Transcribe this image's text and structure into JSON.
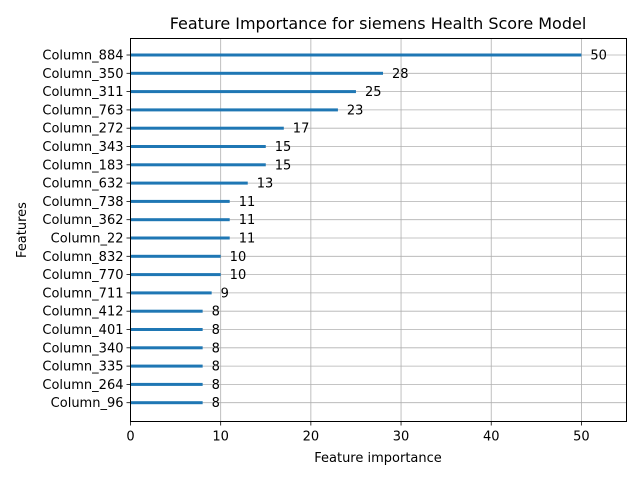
{
  "chart_data": {
    "type": "bar",
    "orientation": "horizontal",
    "title": "Feature Importance for siemens Health Score Model",
    "xlabel": "Feature importance",
    "ylabel": "Features",
    "xlim": [
      0,
      55
    ],
    "xticks": [
      0,
      10,
      20,
      30,
      40,
      50
    ],
    "grid": true,
    "bar_color": "#1f77b4",
    "categories": [
      "Column_884",
      "Column_350",
      "Column_311",
      "Column_763",
      "Column_272",
      "Column_343",
      "Column_183",
      "Column_632",
      "Column_738",
      "Column_362",
      "Column_22",
      "Column_832",
      "Column_770",
      "Column_711",
      "Column_412",
      "Column_401",
      "Column_340",
      "Column_335",
      "Column_264",
      "Column_96"
    ],
    "values": [
      50,
      28,
      25,
      23,
      17,
      15,
      15,
      13,
      11,
      11,
      11,
      10,
      10,
      9,
      8,
      8,
      8,
      8,
      8,
      8
    ]
  }
}
